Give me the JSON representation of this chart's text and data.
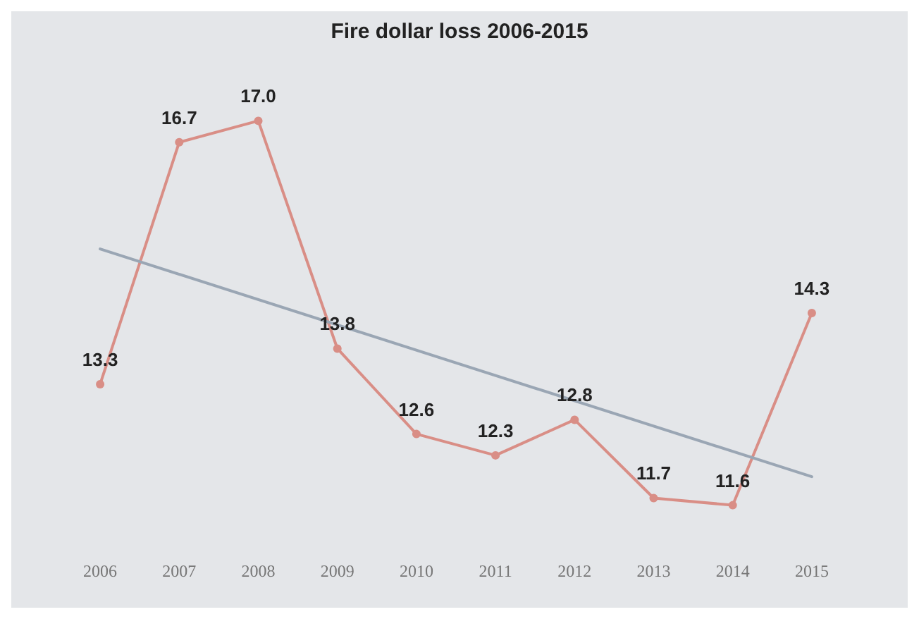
{
  "chart_data": {
    "type": "line",
    "title": "Fire dollar loss 2006-2015",
    "categories": [
      "2006",
      "2007",
      "2008",
      "2009",
      "2010",
      "2011",
      "2012",
      "2013",
      "2014",
      "2015"
    ],
    "series": [
      {
        "color": "#d98e86",
        "values": [
          13.3,
          16.7,
          17.0,
          13.8,
          12.6,
          12.3,
          12.8,
          11.7,
          11.6,
          14.3
        ],
        "value_labels": [
          "13.3",
          "16.7",
          "17.0",
          "13.8",
          "12.6",
          "12.3",
          "12.8",
          "11.7",
          "11.6",
          "14.3"
        ],
        "marker": "circle"
      },
      {
        "color": "#9aa6b4",
        "values": [
          15.2,
          null,
          null,
          null,
          null,
          null,
          null,
          null,
          null,
          12.0
        ],
        "marker": "none"
      }
    ]
  }
}
